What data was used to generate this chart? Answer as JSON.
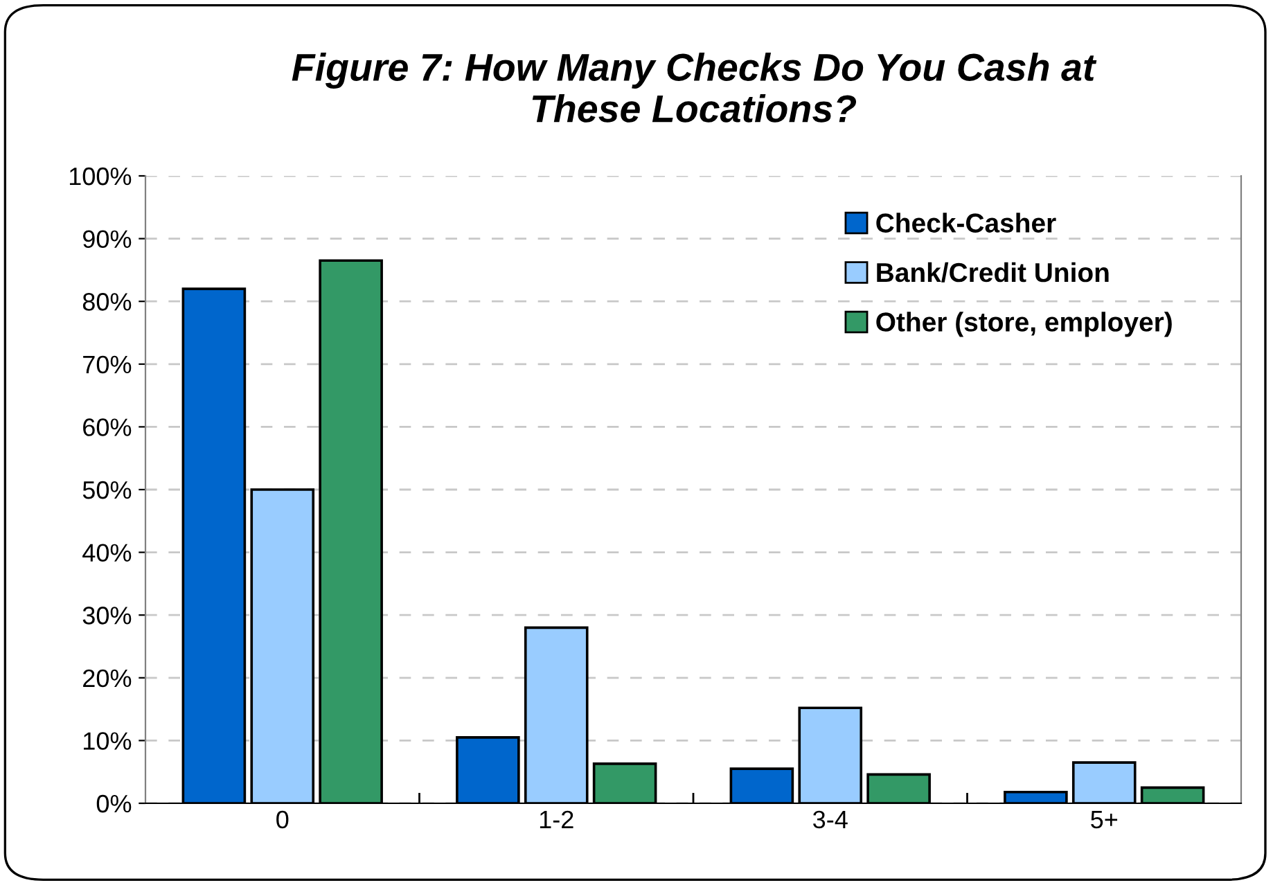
{
  "chart_data": {
    "type": "bar",
    "title": "Figure 7: How Many Checks Do You Cash at\nThese Locations?",
    "categories": [
      "0",
      "1-2",
      "3-4",
      "5+"
    ],
    "series": [
      {
        "name": "Check-Casher",
        "color": "#0066cc",
        "values": [
          82,
          10.5,
          5.5,
          1.8
        ]
      },
      {
        "name": "Bank/Credit Union",
        "color": "#99ccff",
        "values": [
          50,
          28,
          15.2,
          6.5
        ]
      },
      {
        "name": "Other (store, employer)",
        "color": "#339966",
        "values": [
          86.5,
          6.3,
          4.6,
          2.5
        ]
      }
    ],
    "ylim": [
      0,
      100
    ],
    "yticks": [
      {
        "value": 0,
        "label": "0%"
      },
      {
        "value": 10,
        "label": "10%"
      },
      {
        "value": 20,
        "label": "20%"
      },
      {
        "value": 30,
        "label": "30%"
      },
      {
        "value": 40,
        "label": "40%"
      },
      {
        "value": 50,
        "label": "50%"
      },
      {
        "value": 60,
        "label": "60%"
      },
      {
        "value": 70,
        "label": "70%"
      },
      {
        "value": 80,
        "label": "80%"
      },
      {
        "value": 90,
        "label": "90%"
      },
      {
        "value": 100,
        "label": "100%"
      }
    ],
    "grid": "y",
    "legend": "top right"
  }
}
